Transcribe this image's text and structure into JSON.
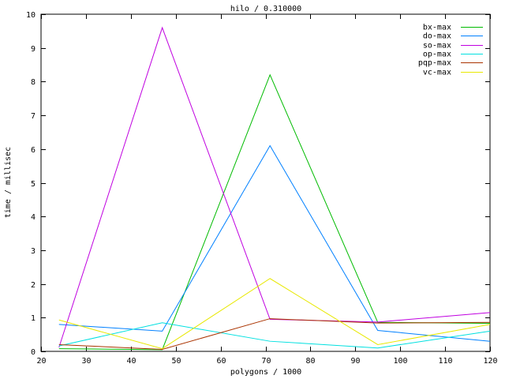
{
  "window": {
    "background": "#ffffff"
  },
  "chart_data": {
    "type": "line",
    "title": "hilo / 0.310000",
    "xlabel": "polygons / 1000",
    "ylabel": "time / millisec",
    "xlim": [
      20,
      120
    ],
    "ylim": [
      0,
      10
    ],
    "xticks": [
      20,
      30,
      40,
      50,
      60,
      70,
      80,
      90,
      100,
      110,
      120
    ],
    "yticks": [
      0,
      1,
      2,
      3,
      4,
      5,
      6,
      7,
      8,
      9,
      10
    ],
    "grid": false,
    "legend_position": "top-right-inside",
    "axis_color": "#000000",
    "text_color": "#000000",
    "x": [
      24,
      47,
      71,
      95,
      120
    ],
    "series": [
      {
        "name": "bx-max",
        "color": "#00bb00",
        "values": [
          0.08,
          0.05,
          8.2,
          0.86,
          0.83
        ]
      },
      {
        "name": "do-max",
        "color": "#0080ff",
        "values": [
          0.8,
          0.6,
          6.1,
          0.62,
          0.3
        ]
      },
      {
        "name": "so-max",
        "color": "#c000e0",
        "values": [
          0.12,
          9.6,
          0.95,
          0.87,
          1.15
        ]
      },
      {
        "name": "op-max",
        "color": "#00e0e0",
        "values": [
          0.16,
          0.85,
          0.3,
          0.1,
          0.6
        ]
      },
      {
        "name": "pqp-max",
        "color": "#aa3300",
        "values": [
          0.2,
          0.06,
          0.97,
          0.84,
          0.86
        ]
      },
      {
        "name": "vc-max",
        "color": "#e8e800",
        "values": [
          0.93,
          0.08,
          2.16,
          0.2,
          0.8
        ]
      }
    ]
  }
}
